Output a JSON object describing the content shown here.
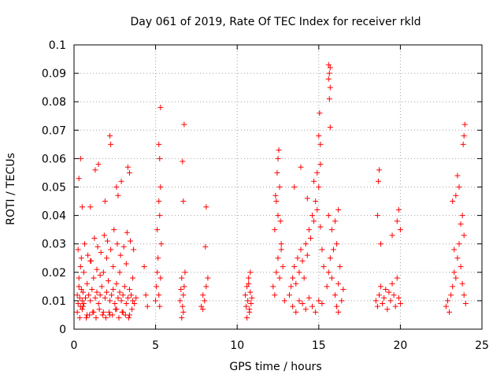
{
  "chart_data": {
    "type": "scatter",
    "title": "Day 061 of 2019, Rate Of TEC Index for receiver rkld",
    "xlabel": "GPS time / hours",
    "ylabel": "ROTI / TECUs",
    "xlim": [
      0,
      25
    ],
    "ylim": [
      0,
      0.1
    ],
    "xticks": [
      "0",
      "5",
      "10",
      "15",
      "20",
      "25"
    ],
    "yticks": [
      "0",
      "0.01",
      "0.02",
      "0.03",
      "0.04",
      "0.05",
      "0.06",
      "0.07",
      "0.08",
      "0.09",
      "0.1"
    ],
    "grid": true,
    "marker": "+",
    "color": "#ff0000",
    "series": [
      {
        "x": [
          0.2,
          0.25,
          0.3,
          0.35,
          0.4,
          0.45,
          0.5,
          0.55,
          0.6,
          0.7,
          0.8,
          0.9,
          1.0,
          1.1,
          1.2,
          1.3,
          1.4,
          1.5,
          1.6,
          1.7,
          1.8,
          1.9,
          2.0,
          2.1,
          2.2,
          2.3,
          2.4,
          2.5,
          2.6,
          2.7,
          2.8,
          2.9,
          3.0,
          3.1,
          3.2,
          3.3,
          3.4,
          3.5,
          3.6,
          3.7,
          3.8,
          0.2,
          0.3,
          0.4,
          0.5,
          0.6,
          0.8,
          1.0,
          1.2,
          1.4,
          1.6,
          1.8,
          2.0,
          2.2,
          2.4,
          2.6,
          2.8,
          3.0,
          3.2,
          3.4,
          3.6,
          0.25,
          0.45,
          0.65,
          0.85,
          1.05,
          1.25,
          1.45,
          1.65,
          1.85,
          2.05,
          2.25,
          2.45,
          2.65,
          2.85,
          3.05,
          3.25,
          3.45,
          3.65,
          0.35,
          0.55,
          0.75,
          0.95,
          1.15,
          1.35,
          1.55,
          1.75,
          1.95,
          2.15,
          2.35,
          2.55,
          2.75,
          2.95,
          3.15,
          3.35,
          3.55,
          0.4,
          0.3,
          1.3,
          1.5,
          2.2,
          2.25,
          2.6,
          2.7,
          3.3,
          3.4,
          1.0,
          1.9,
          2.9,
          0.5,
          4.3,
          4.4,
          4.5,
          5.0,
          5.05,
          5.1,
          5.15,
          5.2,
          5.25,
          5.3,
          5.35,
          5.1,
          5.2,
          5.25,
          5.3,
          5.2,
          5.3,
          5.25,
          6.5,
          6.55,
          6.6,
          6.65,
          6.7,
          6.75,
          6.8,
          6.7,
          6.6,
          6.7,
          6.65,
          6.75,
          7.8,
          7.9,
          8.0,
          8.1,
          8.2,
          7.9,
          8.05,
          8.1,
          10.5,
          10.55,
          10.6,
          10.65,
          10.7,
          10.75,
          10.8,
          10.85,
          10.9,
          10.6,
          10.7,
          10.8,
          10.75,
          12.2,
          12.3,
          12.4,
          12.5,
          12.6,
          12.7,
          12.8,
          12.9,
          12.3,
          12.5,
          12.7,
          12.4,
          12.6,
          12.5,
          12.55,
          12.45,
          12.35,
          12.65,
          13.2,
          13.3,
          13.4,
          13.5,
          13.6,
          13.7,
          13.8,
          13.9,
          14.0,
          14.1,
          14.2,
          14.3,
          14.4,
          14.5,
          14.6,
          14.7,
          14.8,
          14.9,
          15.0,
          15.1,
          15.2,
          15.3,
          13.4,
          13.6,
          13.8,
          14.0,
          14.2,
          14.4,
          14.6,
          14.8,
          15.0,
          15.2,
          13.5,
          13.9,
          14.3,
          14.7,
          15.1,
          15.0,
          15.05,
          15.1,
          14.9,
          15.5,
          15.6,
          15.7,
          15.8,
          15.9,
          16.0,
          16.1,
          16.2,
          16.3,
          16.4,
          16.5,
          15.6,
          15.8,
          16.0,
          16.2,
          15.7,
          15.65,
          15.6,
          15.7,
          15.6,
          15.65,
          15.7,
          16.1,
          16.2,
          18.5,
          18.6,
          18.7,
          18.8,
          18.9,
          19.0,
          19.1,
          19.2,
          19.3,
          19.4,
          19.5,
          19.6,
          19.7,
          19.8,
          19.9,
          20.0,
          18.6,
          18.8,
          19.5,
          19.8,
          19.9,
          20.0,
          18.7,
          18.65,
          22.8,
          22.9,
          23.0,
          23.1,
          23.2,
          23.3,
          23.4,
          23.5,
          23.6,
          23.7,
          23.8,
          23.9,
          24.0,
          23.2,
          23.4,
          23.6,
          23.8,
          23.9,
          23.3,
          23.5,
          23.7,
          23.85,
          23.9,
          23.95
        ],
        "y": [
          0.012,
          0.009,
          0.015,
          0.011,
          0.008,
          0.014,
          0.01,
          0.013,
          0.009,
          0.011,
          0.016,
          0.012,
          0.01,
          0.014,
          0.018,
          0.011,
          0.013,
          0.009,
          0.012,
          0.015,
          0.02,
          0.011,
          0.013,
          0.017,
          0.01,
          0.012,
          0.014,
          0.009,
          0.016,
          0.011,
          0.013,
          0.01,
          0.012,
          0.015,
          0.009,
          0.011,
          0.014,
          0.012,
          0.01,
          0.009,
          0.011,
          0.006,
          0.018,
          0.022,
          0.007,
          0.02,
          0.005,
          0.024,
          0.006,
          0.021,
          0.019,
          0.006,
          0.025,
          0.005,
          0.022,
          0.007,
          0.02,
          0.006,
          0.023,
          0.005,
          0.018,
          0.028,
          0.025,
          0.03,
          0.026,
          0.024,
          0.032,
          0.029,
          0.027,
          0.033,
          0.031,
          0.028,
          0.035,
          0.03,
          0.026,
          0.029,
          0.034,
          0.031,
          0.028,
          0.004,
          0.008,
          0.004,
          0.005,
          0.006,
          0.004,
          0.007,
          0.005,
          0.004,
          0.006,
          0.005,
          0.007,
          0.004,
          0.006,
          0.005,
          0.004,
          0.007,
          0.06,
          0.053,
          0.056,
          0.058,
          0.068,
          0.065,
          0.05,
          0.047,
          0.057,
          0.055,
          0.043,
          0.045,
          0.052,
          0.043,
          0.022,
          0.012,
          0.008,
          0.01,
          0.015,
          0.02,
          0.025,
          0.012,
          0.008,
          0.018,
          0.03,
          0.035,
          0.045,
          0.06,
          0.05,
          0.065,
          0.078,
          0.04,
          0.01,
          0.014,
          0.018,
          0.008,
          0.012,
          0.015,
          0.02,
          0.006,
          0.004,
          0.045,
          0.059,
          0.072,
          0.008,
          0.012,
          0.01,
          0.015,
          0.018,
          0.007,
          0.029,
          0.043,
          0.012,
          0.008,
          0.015,
          0.01,
          0.018,
          0.006,
          0.013,
          0.009,
          0.011,
          0.004,
          0.016,
          0.02,
          0.007,
          0.015,
          0.012,
          0.02,
          0.025,
          0.018,
          0.03,
          0.022,
          0.01,
          0.035,
          0.04,
          0.028,
          0.045,
          0.05,
          0.06,
          0.063,
          0.055,
          0.047,
          0.038,
          0.012,
          0.015,
          0.018,
          0.022,
          0.016,
          0.025,
          0.02,
          0.028,
          0.024,
          0.018,
          0.03,
          0.026,
          0.035,
          0.032,
          0.04,
          0.038,
          0.045,
          0.042,
          0.05,
          0.036,
          0.028,
          0.022,
          0.008,
          0.006,
          0.01,
          0.009,
          0.007,
          0.011,
          0.008,
          0.006,
          0.01,
          0.009,
          0.05,
          0.057,
          0.046,
          0.052,
          0.058,
          0.068,
          0.076,
          0.065,
          0.055,
          0.015,
          0.02,
          0.025,
          0.018,
          0.028,
          0.012,
          0.03,
          0.016,
          0.022,
          0.01,
          0.014,
          0.04,
          0.035,
          0.038,
          0.042,
          0.071,
          0.081,
          0.093,
          0.085,
          0.088,
          0.09,
          0.092,
          0.008,
          0.006,
          0.01,
          0.008,
          0.012,
          0.015,
          0.009,
          0.011,
          0.014,
          0.007,
          0.013,
          0.01,
          0.016,
          0.012,
          0.008,
          0.018,
          0.011,
          0.009,
          0.04,
          0.03,
          0.033,
          0.038,
          0.042,
          0.035,
          0.056,
          0.052,
          0.008,
          0.01,
          0.006,
          0.012,
          0.015,
          0.02,
          0.018,
          0.025,
          0.03,
          0.022,
          0.016,
          0.012,
          0.009,
          0.045,
          0.047,
          0.05,
          0.04,
          0.033,
          0.028,
          0.054,
          0.037,
          0.065,
          0.068,
          0.072
        ]
      }
    ]
  }
}
